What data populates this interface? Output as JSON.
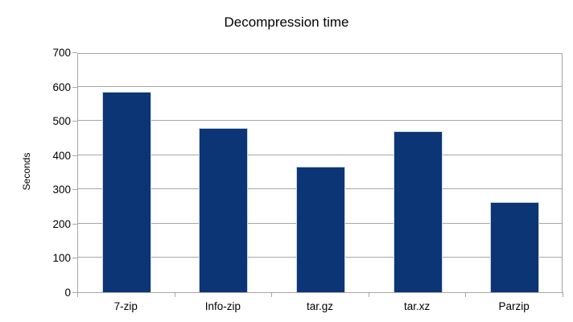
{
  "chart_data": {
    "type": "bar",
    "title": "Decompression time",
    "ylabel": "Seconds",
    "xlabel": "",
    "categories": [
      "7-zip",
      "Info-zip",
      "tar.gz",
      "tar.xz",
      "Parzip"
    ],
    "values": [
      584,
      480,
      367,
      470,
      264
    ],
    "ylim": [
      0,
      700
    ],
    "ytick_interval": 100,
    "ytick_labels": [
      "0",
      "100",
      "200",
      "300",
      "400",
      "500",
      "600",
      "700"
    ],
    "grid": true,
    "legend_position": "none",
    "colors": {
      "bar_fill": "#0b3575",
      "bar_edge": "#ccd6e6",
      "grid": "#a6a6a6",
      "text": "#000000",
      "background": "#ffffff"
    }
  }
}
